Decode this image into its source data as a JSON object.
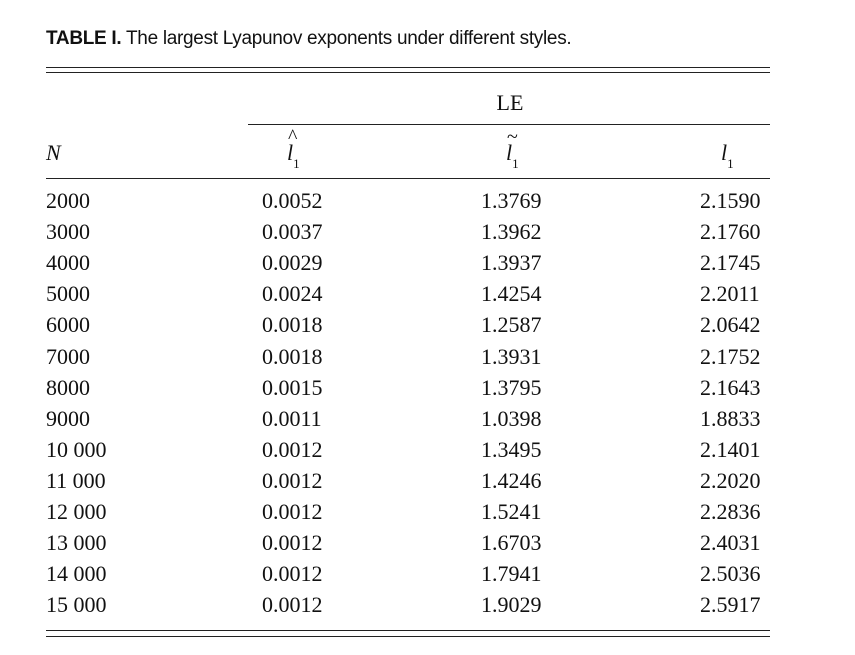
{
  "caption": {
    "label": "TABLE I.",
    "text": "The largest Lyapunov exponents under different styles."
  },
  "table": {
    "group_header": "LE",
    "columns": {
      "n": "N",
      "l_hat_symbol": "l",
      "l_hat_accent": "^",
      "l_tilde_symbol": "l",
      "l_tilde_accent": "~",
      "l_symbol": "l",
      "subscript": "1"
    },
    "rows": [
      [
        "2000",
        "0.0052",
        "1.3769",
        "2.1590"
      ],
      [
        "3000",
        "0.0037",
        "1.3962",
        "2.1760"
      ],
      [
        "4000",
        "0.0029",
        "1.3937",
        "2.1745"
      ],
      [
        "5000",
        "0.0024",
        "1.4254",
        "2.2011"
      ],
      [
        "6000",
        "0.0018",
        "1.2587",
        "2.0642"
      ],
      [
        "7000",
        "0.0018",
        "1.3931",
        "2.1752"
      ],
      [
        "8000",
        "0.0015",
        "1.3795",
        "2.1643"
      ],
      [
        "9000",
        "0.0011",
        "1.0398",
        "1.8833"
      ],
      [
        "10 000",
        "0.0012",
        "1.3495",
        "2.1401"
      ],
      [
        "11 000",
        "0.0012",
        "1.4246",
        "2.2020"
      ],
      [
        "12 000",
        "0.0012",
        "1.5241",
        "2.2836"
      ],
      [
        "13 000",
        "0.0012",
        "1.6703",
        "2.4031"
      ],
      [
        "14 000",
        "0.0012",
        "1.7941",
        "2.5036"
      ],
      [
        "15 000",
        "0.0012",
        "1.9029",
        "2.5917"
      ]
    ]
  }
}
